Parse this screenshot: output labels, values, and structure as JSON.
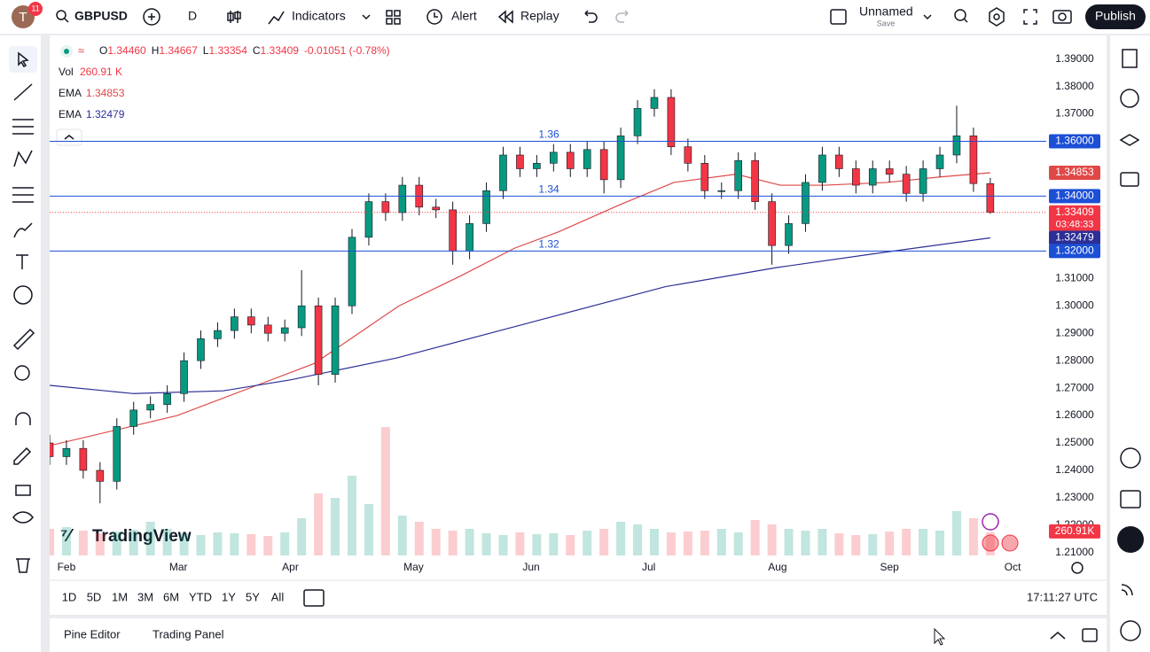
{
  "toolbar": {
    "avatar": "T",
    "badge": "11",
    "symbol": "GBPUSD",
    "interval": "D",
    "indicators": "Indicators",
    "alert": "Alert",
    "replay": "Replay",
    "layout_name": "Unnamed",
    "save": "Save",
    "publish": "Publish"
  },
  "legend": {
    "ohlc": [
      {
        "k": "O",
        "v": "1.34460"
      },
      {
        "k": "H",
        "v": "1.34667"
      },
      {
        "k": "L",
        "v": "1.33354"
      },
      {
        "k": "C",
        "v": "1.33409"
      }
    ],
    "change": "-0.01051 (-0.78%)",
    "volume": {
      "k": "Vol",
      "v": "260.91 K"
    },
    "ema": [
      "1.34853",
      "1.32479"
    ]
  },
  "chart_data": {
    "type": "candlestick",
    "up_color": "#089981",
    "down_color": "#f23645",
    "x": [
      0,
      3,
      6,
      9,
      12,
      15,
      18,
      21,
      24,
      27,
      30,
      33,
      36,
      39,
      42,
      45,
      48,
      51,
      54,
      57,
      60,
      63,
      66,
      69,
      72,
      75,
      78,
      81,
      84,
      87,
      90,
      93,
      96,
      99,
      102,
      105,
      108,
      111,
      114,
      117,
      120,
      123,
      126,
      129,
      132,
      135,
      138,
      141,
      144,
      147,
      150,
      153,
      156,
      159,
      162,
      165,
      168
    ],
    "open": [
      1.25,
      1.245,
      1.248,
      1.24,
      1.236,
      1.256,
      1.262,
      1.264,
      1.268,
      1.28,
      1.288,
      1.291,
      1.296,
      1.293,
      1.29,
      1.292,
      1.3,
      1.275,
      1.3,
      1.325,
      1.338,
      1.334,
      1.344,
      1.336,
      1.335,
      1.32,
      1.33,
      1.342,
      1.355,
      1.35,
      1.352,
      1.356,
      1.35,
      1.357,
      1.346,
      1.362,
      1.372,
      1.376,
      1.358,
      1.352,
      1.342,
      1.342,
      1.353,
      1.338,
      1.322,
      1.33,
      1.345,
      1.355,
      1.35,
      1.344,
      1.35,
      1.348,
      1.341,
      1.35,
      1.355,
      1.362,
      1.3446
    ],
    "high": [
      1.253,
      1.251,
      1.251,
      1.243,
      1.259,
      1.265,
      1.267,
      1.271,
      1.283,
      1.291,
      1.294,
      1.299,
      1.299,
      1.296,
      1.295,
      1.313,
      1.303,
      1.303,
      1.328,
      1.341,
      1.341,
      1.347,
      1.347,
      1.339,
      1.338,
      1.333,
      1.345,
      1.358,
      1.358,
      1.355,
      1.359,
      1.359,
      1.36,
      1.36,
      1.365,
      1.375,
      1.379,
      1.379,
      1.361,
      1.355,
      1.345,
      1.356,
      1.356,
      1.341,
      1.333,
      1.348,
      1.358,
      1.358,
      1.353,
      1.353,
      1.353,
      1.351,
      1.353,
      1.358,
      1.373,
      1.365,
      1.34667
    ],
    "low": [
      1.242,
      1.242,
      1.237,
      1.228,
      1.233,
      1.253,
      1.259,
      1.261,
      1.265,
      1.277,
      1.285,
      1.288,
      1.29,
      1.287,
      1.287,
      1.289,
      1.271,
      1.272,
      1.297,
      1.322,
      1.331,
      1.331,
      1.333,
      1.332,
      1.315,
      1.317,
      1.327,
      1.339,
      1.347,
      1.347,
      1.349,
      1.347,
      1.347,
      1.341,
      1.343,
      1.359,
      1.369,
      1.355,
      1.349,
      1.339,
      1.339,
      1.339,
      1.335,
      1.315,
      1.319,
      1.327,
      1.342,
      1.347,
      1.341,
      1.341,
      1.345,
      1.338,
      1.338,
      1.347,
      1.352,
      1.3416,
      1.33354
    ],
    "close": [
      1.245,
      1.248,
      1.24,
      1.236,
      1.256,
      1.262,
      1.264,
      1.268,
      1.28,
      1.288,
      1.291,
      1.296,
      1.293,
      1.29,
      1.292,
      1.3,
      1.275,
      1.3,
      1.325,
      1.338,
      1.334,
      1.344,
      1.336,
      1.335,
      1.32,
      1.33,
      1.342,
      1.355,
      1.35,
      1.352,
      1.356,
      1.35,
      1.357,
      1.346,
      1.362,
      1.372,
      1.376,
      1.358,
      1.352,
      1.342,
      1.342,
      1.353,
      1.338,
      1.322,
      1.33,
      1.345,
      1.355,
      1.35,
      1.344,
      1.35,
      1.348,
      1.341,
      1.35,
      1.355,
      1.362,
      1.3446,
      1.33409
    ],
    "volume": [
      300,
      320,
      280,
      250,
      270,
      290,
      380,
      300,
      250,
      230,
      260,
      250,
      240,
      220,
      260,
      420,
      700,
      650,
      900,
      580,
      1450,
      450,
      380,
      300,
      280,
      300,
      250,
      230,
      260,
      240,
      250,
      230,
      280,
      300,
      380,
      350,
      300,
      260,
      270,
      280,
      300,
      260,
      400,
      350,
      300,
      280,
      300,
      250,
      230,
      240,
      270,
      300,
      300,
      280,
      500,
      420,
      260.91
    ],
    "volume_label": "260.91K",
    "series": [
      {
        "name": "EMA",
        "color": "#e04848",
        "x": [
          0,
          22.8,
          37,
          47.3,
          54.5,
          62.4,
          73.5,
          83,
          90.9,
          102,
          111.5,
          122.6,
          130.5,
          138.4,
          149.5,
          159,
          168
        ],
        "values": [
          1.249,
          1.26,
          1.271,
          1.279,
          1.289,
          1.3,
          1.311,
          1.321,
          1.327,
          1.337,
          1.345,
          1.348,
          1.344,
          1.344,
          1.345,
          1.347,
          1.34853
        ]
      },
      {
        "name": "EMA",
        "color": "#2c2f96",
        "x": [
          0,
          15,
          31,
          43,
          62,
          86,
          110,
          130,
          149,
          168
        ],
        "values": [
          1.271,
          1.268,
          1.269,
          1.273,
          1.281,
          1.294,
          1.307,
          1.314,
          1.3195,
          1.32479
        ]
      }
    ],
    "levels": [
      1.36,
      1.34,
      1.32
    ],
    "level_color": "#1c4fd6",
    "price_labels": [
      {
        "value": 1.36,
        "label": "1.36000",
        "color": "#1c4fd6"
      },
      {
        "value": 1.34853,
        "label": "1.34853",
        "color": "#e04848"
      },
      {
        "value": 1.34,
        "label": "1.34000",
        "color": "#1c4fd6"
      },
      {
        "value": 1.33409,
        "label": "1.33409",
        "sub": "03:48:33",
        "color": "#f23645"
      },
      {
        "value": 1.32479,
        "label": "1.32479",
        "color": "#2c2f96"
      },
      {
        "value": 1.32,
        "label": "1.32000",
        "color": "#1c4fd6"
      }
    ],
    "xlim": [
      0,
      178
    ],
    "ylim": [
      1.208,
      1.397
    ],
    "xticks": [
      {
        "value": 3,
        "label": "Feb"
      },
      {
        "value": 23,
        "label": "Mar"
      },
      {
        "value": 43,
        "label": "Apr"
      },
      {
        "value": 65,
        "label": "May"
      },
      {
        "value": 86,
        "label": "Jun"
      },
      {
        "value": 107,
        "label": "Jul"
      },
      {
        "value": 130,
        "label": "Aug"
      },
      {
        "value": 150,
        "label": "Sep"
      },
      {
        "value": 172,
        "label": "Oct"
      }
    ],
    "yticks": [
      {
        "value": 1.39,
        "label": "1.39000"
      },
      {
        "value": 1.38,
        "label": "1.38000"
      },
      {
        "value": 1.37,
        "label": "1.37000"
      },
      {
        "value": 1.31,
        "label": "1.31000"
      },
      {
        "value": 1.3,
        "label": "1.30000"
      },
      {
        "value": 1.29,
        "label": "1.29000"
      },
      {
        "value": 1.28,
        "label": "1.28000"
      },
      {
        "value": 1.27,
        "label": "1.27000"
      },
      {
        "value": 1.26,
        "label": "1.26000"
      },
      {
        "value": 1.25,
        "label": "1.25000"
      },
      {
        "value": 1.24,
        "label": "1.24000"
      },
      {
        "value": 1.23,
        "label": "1.23000"
      },
      {
        "value": 1.22,
        "label": "1.22000"
      },
      {
        "value": 1.21,
        "label": "1.21000"
      }
    ],
    "grid": false
  },
  "logo": "TradingView",
  "timeframes": [
    "1D",
    "5D",
    "1M",
    "3M",
    "6M",
    "YTD",
    "1Y",
    "5Y",
    "All"
  ],
  "clock": "17:11:27 UTC",
  "bottom_panel": [
    "Pine Editor",
    "Trading Panel"
  ]
}
